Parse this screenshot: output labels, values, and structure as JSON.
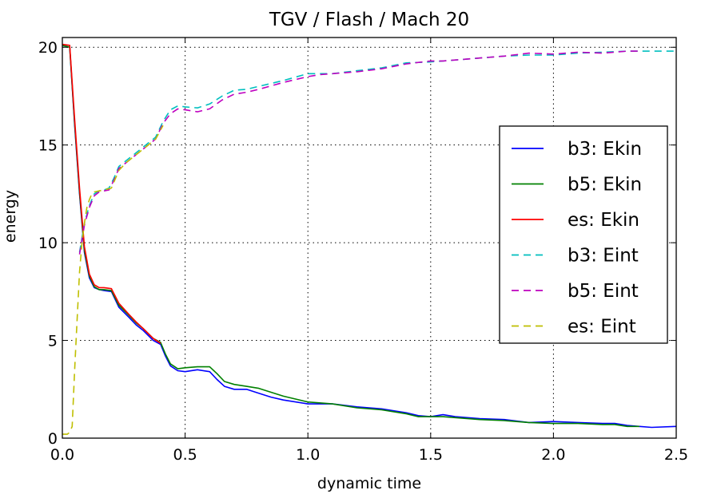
{
  "chart_data": {
    "type": "line",
    "title": "TGV / Flash / Mach 20",
    "xlabel": "dynamic time",
    "ylabel": "energy",
    "xlim": [
      0.0,
      2.5
    ],
    "ylim": [
      0,
      20.5
    ],
    "xticks": [
      0.0,
      0.5,
      1.0,
      1.5,
      2.0,
      2.5
    ],
    "xtick_labels": [
      "0.0",
      "0.5",
      "1.0",
      "1.5",
      "2.0",
      "2.5"
    ],
    "yticks": [
      0,
      5,
      10,
      15,
      20
    ],
    "ytick_labels": [
      "0",
      "5",
      "10",
      "15",
      "20"
    ],
    "grid": true,
    "legend_position": "center-right",
    "series": [
      {
        "name": "b3: Ekin",
        "color": "#0000ff",
        "dash": "solid",
        "x": [
          0.0,
          0.03,
          0.05,
          0.07,
          0.09,
          0.11,
          0.13,
          0.15,
          0.17,
          0.2,
          0.23,
          0.27,
          0.3,
          0.33,
          0.37,
          0.4,
          0.42,
          0.44,
          0.47,
          0.5,
          0.55,
          0.6,
          0.63,
          0.66,
          0.7,
          0.75,
          0.8,
          0.85,
          0.9,
          1.0,
          1.1,
          1.2,
          1.3,
          1.4,
          1.45,
          1.5,
          1.55,
          1.6,
          1.7,
          1.8,
          1.9,
          2.0,
          2.1,
          2.2,
          2.25,
          2.3,
          2.35,
          2.4,
          2.5
        ],
        "y": [
          20.1,
          20.0,
          16.0,
          12.5,
          9.5,
          8.2,
          7.7,
          7.6,
          7.55,
          7.5,
          6.7,
          6.2,
          5.8,
          5.5,
          5.0,
          4.8,
          4.2,
          3.7,
          3.45,
          3.4,
          3.5,
          3.4,
          3.0,
          2.65,
          2.5,
          2.5,
          2.3,
          2.1,
          1.95,
          1.75,
          1.75,
          1.6,
          1.5,
          1.3,
          1.15,
          1.1,
          1.2,
          1.1,
          1.0,
          0.95,
          0.8,
          0.85,
          0.8,
          0.75,
          0.75,
          0.65,
          0.6,
          0.55,
          0.6
        ]
      },
      {
        "name": "b5: Ekin",
        "color": "#008000",
        "dash": "solid",
        "x": [
          0.0,
          0.03,
          0.05,
          0.07,
          0.09,
          0.11,
          0.13,
          0.15,
          0.17,
          0.2,
          0.23,
          0.27,
          0.3,
          0.33,
          0.37,
          0.4,
          0.42,
          0.44,
          0.47,
          0.5,
          0.55,
          0.6,
          0.63,
          0.66,
          0.7,
          0.75,
          0.8,
          0.85,
          0.9,
          1.0,
          1.1,
          1.2,
          1.3,
          1.4,
          1.45,
          1.5,
          1.55,
          1.6,
          1.7,
          1.8,
          1.9,
          2.0,
          2.1,
          2.2,
          2.25,
          2.3,
          2.35
        ],
        "y": [
          20.1,
          20.0,
          16.1,
          12.6,
          9.6,
          8.3,
          7.75,
          7.6,
          7.6,
          7.55,
          6.8,
          6.3,
          5.9,
          5.6,
          5.1,
          4.9,
          4.3,
          3.8,
          3.55,
          3.6,
          3.65,
          3.65,
          3.3,
          2.9,
          2.75,
          2.65,
          2.55,
          2.35,
          2.15,
          1.85,
          1.75,
          1.55,
          1.45,
          1.25,
          1.1,
          1.1,
          1.1,
          1.05,
          0.95,
          0.9,
          0.8,
          0.75,
          0.75,
          0.7,
          0.7,
          0.6,
          0.6
        ]
      },
      {
        "name": "es: Ekin",
        "color": "#ff0000",
        "dash": "solid",
        "x": [
          0.0,
          0.03,
          0.05,
          0.07,
          0.09,
          0.11,
          0.13,
          0.15,
          0.17,
          0.2,
          0.23,
          0.27,
          0.3,
          0.33,
          0.37,
          0.4
        ],
        "y": [
          20.15,
          20.1,
          16.3,
          12.8,
          9.8,
          8.4,
          7.85,
          7.7,
          7.7,
          7.65,
          6.9,
          6.35,
          5.95,
          5.6,
          5.1,
          4.85
        ]
      },
      {
        "name": "b3: Eint",
        "color": "#00bfbf",
        "dash": "dashed",
        "x": [
          0.07,
          0.09,
          0.11,
          0.13,
          0.15,
          0.17,
          0.19,
          0.21,
          0.23,
          0.26,
          0.3,
          0.34,
          0.38,
          0.41,
          0.44,
          0.47,
          0.5,
          0.55,
          0.6,
          0.65,
          0.7,
          0.75,
          0.8,
          0.9,
          1.0,
          1.05,
          1.1,
          1.2,
          1.3,
          1.4,
          1.5,
          1.55,
          1.6,
          1.7,
          1.8,
          1.9,
          2.0,
          2.1,
          2.2,
          2.3,
          2.4,
          2.5
        ],
        "y": [
          9.5,
          11.0,
          11.9,
          12.5,
          12.65,
          12.7,
          12.8,
          13.3,
          13.9,
          14.2,
          14.6,
          15.0,
          15.4,
          16.2,
          16.8,
          17.0,
          16.95,
          16.9,
          17.1,
          17.5,
          17.8,
          17.85,
          18.0,
          18.3,
          18.65,
          18.65,
          18.65,
          18.8,
          18.95,
          19.2,
          19.25,
          19.3,
          19.35,
          19.45,
          19.55,
          19.6,
          19.6,
          19.7,
          19.75,
          19.8,
          19.8,
          19.8
        ]
      },
      {
        "name": "b5: Eint",
        "color": "#bf00bf",
        "dash": "dashed",
        "x": [
          0.07,
          0.09,
          0.11,
          0.13,
          0.15,
          0.17,
          0.19,
          0.21,
          0.23,
          0.26,
          0.3,
          0.34,
          0.38,
          0.41,
          0.44,
          0.47,
          0.5,
          0.55,
          0.6,
          0.65,
          0.7,
          0.75,
          0.8,
          0.9,
          1.0,
          1.05,
          1.1,
          1.2,
          1.3,
          1.4,
          1.5,
          1.55,
          1.6,
          1.7,
          1.8,
          1.9,
          2.0,
          2.1,
          2.2,
          2.3,
          2.35
        ],
        "y": [
          9.4,
          10.9,
          11.8,
          12.4,
          12.6,
          12.65,
          12.7,
          13.2,
          13.8,
          14.1,
          14.5,
          14.9,
          15.3,
          16.1,
          16.6,
          16.85,
          16.8,
          16.7,
          16.85,
          17.3,
          17.6,
          17.7,
          17.85,
          18.2,
          18.5,
          18.6,
          18.65,
          18.75,
          18.9,
          19.15,
          19.3,
          19.3,
          19.35,
          19.45,
          19.55,
          19.7,
          19.65,
          19.75,
          19.7,
          19.8,
          19.8
        ]
      },
      {
        "name": "es: Eint",
        "color": "#bfbf00",
        "dash": "dashed",
        "x": [
          0.0,
          0.02,
          0.03,
          0.04,
          0.05,
          0.06,
          0.07,
          0.08,
          0.09,
          0.1,
          0.11,
          0.12,
          0.13,
          0.15,
          0.17,
          0.2,
          0.23,
          0.26,
          0.3,
          0.34,
          0.38,
          0.41
        ],
        "y": [
          0.2,
          0.2,
          0.3,
          0.6,
          3.5,
          6.0,
          8.5,
          10.0,
          11.0,
          11.8,
          12.2,
          12.5,
          12.6,
          12.65,
          12.7,
          12.8,
          13.7,
          14.1,
          14.5,
          14.9,
          15.3,
          16.0
        ]
      }
    ]
  }
}
